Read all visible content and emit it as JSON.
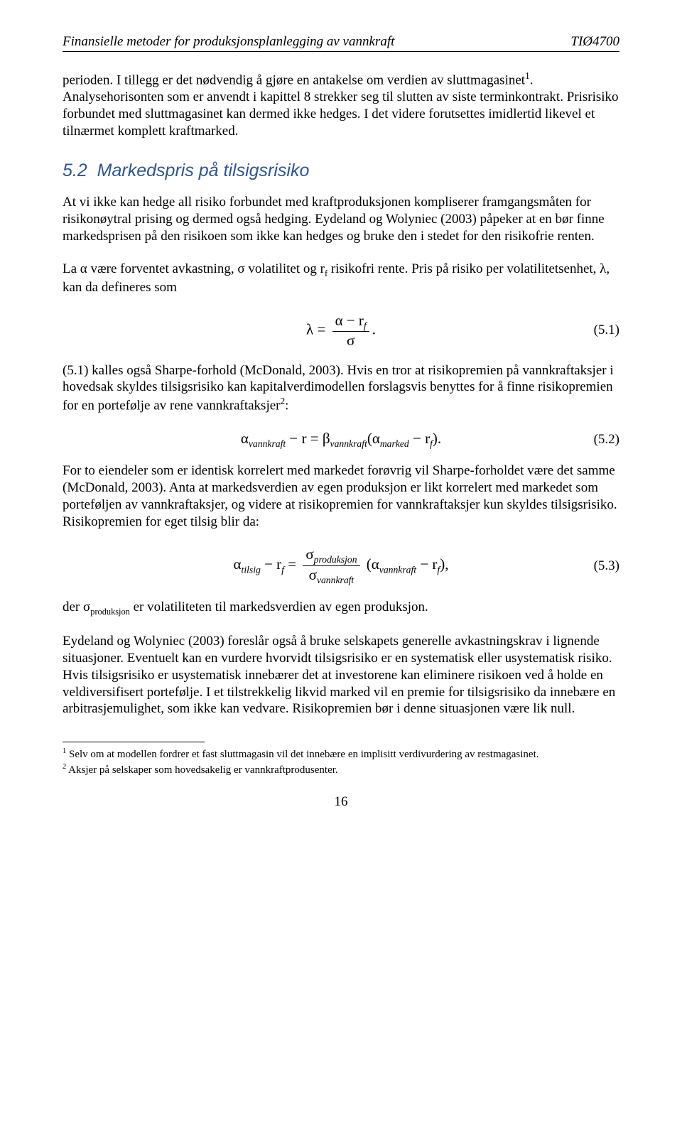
{
  "header": {
    "left": "Finansielle metoder for produksjonsplanlegging av vannkraft",
    "right": "TIØ4700"
  },
  "p1": "perioden. I tillegg er det nødvendig å gjøre en antakelse om verdien av sluttmagasinet",
  "p1_fn": "1",
  "p1b": ". Analysehorisonten som er anvendt i kapittel 8 strekker seg til slutten av siste terminkontrakt. Prisrisiko forbundet med sluttmagasinet kan dermed ikke hedges. I det videre forutsettes imidlertid likevel et tilnærmet komplett kraftmarked.",
  "section": {
    "number": "5.2",
    "title": "Markedspris på tilsigsrisiko"
  },
  "p2": "At vi ikke kan hedge all risiko forbundet med kraftproduksjonen kompliserer framgangsmåten for risikonøytral prising og dermed også hedging. Eydeland og Wolyniec (2003) påpeker at en bør finne markedsprisen på den risikoen som ikke kan hedges og bruke den i stedet for den risikofrie renten.",
  "p3a": "La α være forventet avkastning, σ volatilitet og r",
  "p3a_sub": "f",
  "p3b": " risikofri rente. Pris på risiko per volatilitetsenhet, λ, kan da defineres som",
  "eq1": {
    "lhs": "λ =",
    "num_a": "α − r",
    "num_sub": "f",
    "den": "σ",
    "tail": ".",
    "number": "(5.1)"
  },
  "p4a": "(5.1) kalles også Sharpe-forhold (McDonald, 2003). Hvis en tror at risikopremien på vannkraftaksjer i hovedsak skyldes tilsigsrisiko kan kapitalverdimodellen forslagsvis benyttes for å finne risikopremien for en portefølje av rene vannkraftaksjer",
  "p4_fn": "2",
  "p4b": ":",
  "eq2": {
    "a1": "α",
    "a1_sub": "vannkraft",
    "m1": " − r = β",
    "b1_sub": "vannkraft",
    "open": "(",
    "a2": "α",
    "a2_sub": "marked",
    "m2": " − r",
    "r_sub": "f",
    "close": ")",
    "tail": ".",
    "number": "(5.2)"
  },
  "p5": "For to eiendeler som er identisk korrelert med markedet forøvrig vil Sharpe-forholdet være det samme (McDonald, 2003). Anta at markedsverdien av egen produksjon er likt korrelert med markedet som porteføljen av vannkraftaksjer, og videre at risikopremien for vannkraftaksjer kun skyldes tilsigsrisiko. Risikopremien for eget tilsig blir da:",
  "eq3": {
    "a1": "α",
    "a1_sub": "tilsig",
    "m1": " − r",
    "r1_sub": "f",
    "eq": " = ",
    "num": "σ",
    "num_sub": "produksjon",
    "den": "σ",
    "den_sub": "vannkraft",
    "open": "(",
    "a2": "α",
    "a2_sub": "vannkraft",
    "m2": " − r",
    "r2_sub": "f",
    "close": ")",
    "tail": ",",
    "number": "(5.3)"
  },
  "p6a": "der σ",
  "p6_sub": "produksjon",
  "p6b": " er volatiliteten til markedsverdien av egen produksjon.",
  "p7": "Eydeland og Wolyniec (2003) foreslår også å bruke selskapets generelle avkastningskrav i lignende situasjoner. Eventuelt kan en vurdere hvorvidt tilsigsrisiko er en systematisk eller usystematisk risiko. Hvis tilsigsrisiko er usystematisk innebærer det at investorene kan eliminere risikoen ved å holde en veldiversifisert portefølje. I et tilstrekkelig likvid marked vil en premie for tilsigsrisiko da innebære en arbitrasjemulighet, som ikke kan vedvare. Risikopremien bør i denne situasjonen være lik null.",
  "footnotes": {
    "f1_mark": "1",
    "f1": " Selv om at modellen fordrer et fast sluttmagasin vil det innebære en implisitt verdivurdering av restmagasinet.",
    "f2_mark": "2",
    "f2": " Aksjer på selskaper som hovedsakelig er vannkraftprodusenter."
  },
  "page_number": "16"
}
